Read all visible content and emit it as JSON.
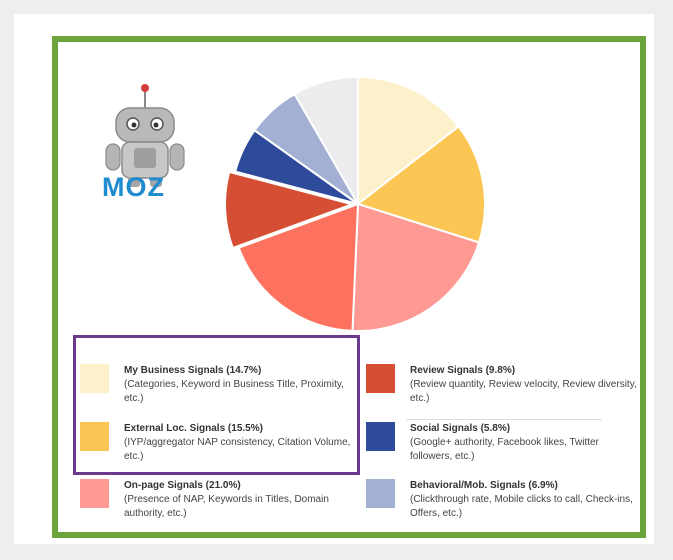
{
  "logo": {
    "wordmark": "MOZ",
    "robot_icon": "moz-robot-mascot",
    "wordmark_color": "#1f8ccf"
  },
  "colors": {
    "frame_border": "#6ba43a",
    "highlight_border": "#6b3a8c"
  },
  "chart_data": {
    "type": "pie",
    "title": "",
    "slices": [
      {
        "label": "My Business Signals (14.7%)",
        "value": 14.7,
        "color": "#fdf1cb",
        "description": "(Categories, Keyword in Business Title, Proximity, etc.)"
      },
      {
        "label": "External Loc. Signals (15.5%)",
        "value": 15.5,
        "color": "#fcc655",
        "description": "(IYP/aggregator NAP consistency, Citation Volume, etc.)"
      },
      {
        "label": "On-page Signals (21.0%)",
        "value": 21.0,
        "color": "#fe9a93",
        "description": "(Presence of NAP, Keywords in Titles, Domain authority, etc.)"
      },
      {
        "label": "",
        "value": 18.9,
        "color": "#fd725e",
        "description": ""
      },
      {
        "label": "Review Signals (9.8%)",
        "value": 9.8,
        "color": "#d64f35",
        "description": "(Review quantity, Review velocity, Review diversity, etc.)"
      },
      {
        "label": "Social Signals (5.8%)",
        "value": 5.8,
        "color": "#2d4b9a",
        "description": "(Google+ authority, Facebook likes, Twitter followers, etc.)"
      },
      {
        "label": "Behavioral/Mob. Signals (6.9%)",
        "value": 6.9,
        "color": "#a3b0d3",
        "description": "(Clickthrough rate, Mobile clicks to call, Check-ins, Offers, etc.)"
      },
      {
        "label": "",
        "value": 8.4,
        "color": "#ecebee",
        "description": ""
      }
    ],
    "legend_placement": "bottom"
  }
}
